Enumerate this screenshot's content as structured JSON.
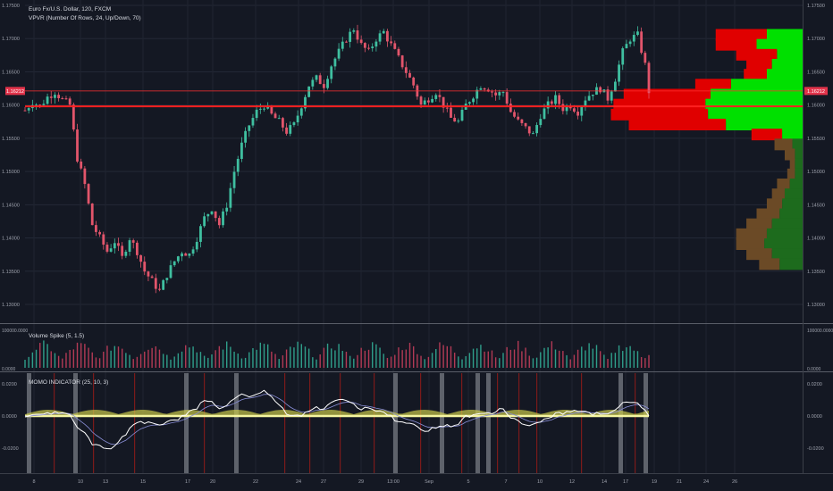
{
  "header": {
    "symbol_title": "Euro Fx/U.S. Dollar, 120, FXCM",
    "vpvr_title": "VPVR (Number Of Rows, 24, Up/Down, 70)"
  },
  "price_axis": {
    "labels": [
      "1.17500",
      "1.17000",
      "1.16500",
      "1.16000",
      "1.15500",
      "1.15000",
      "1.14500",
      "1.14000",
      "1.13500",
      "1.13000"
    ],
    "values": [
      1.175,
      1.17,
      1.165,
      1.16,
      1.155,
      1.15,
      1.145,
      1.14,
      1.135,
      1.13
    ],
    "current_price_label": "1.16212",
    "current_price": 1.16212,
    "poc_price": 1.1598
  },
  "date_axis": {
    "labels": [
      "8",
      "10",
      "13",
      "15",
      "17",
      "20",
      "22",
      "24",
      "27",
      "29",
      "13:00",
      "Sep",
      "5",
      "7",
      "10",
      "12",
      "14",
      "17",
      "19",
      "21",
      "24",
      "26"
    ]
  },
  "volume_pane": {
    "title": "Volume Spike (5, 1.5)",
    "top_label": "100000.0000",
    "bottom_label": "0.0000"
  },
  "momentum_pane": {
    "title": "MOMO INDICATOR (25, 10, 3)",
    "labels": [
      "0.0200",
      "0.0000",
      "-0.0200"
    ],
    "values": [
      0.02,
      0.0,
      -0.02
    ]
  },
  "colors": {
    "background": "#141823",
    "candle_up": "#3fbfa0",
    "candle_down": "#e2556b",
    "vpvr_up_current": "#00e000",
    "vpvr_down_current": "#e00000",
    "vpvr_up_old": "#1d6b1d",
    "vpvr_down_old": "#6b4a26",
    "price_line": "#ff3030",
    "momentum_line": "#ffffff",
    "signal_line": "#8a8fd8",
    "zero_band": "#c8c84a"
  },
  "chart_data": [
    {
      "type": "candlestick",
      "title": "Euro Fx/U.S. Dollar, 120, FXCM",
      "ylim": [
        1.128,
        1.176
      ],
      "price_path": [
        [
          0,
          1.1592
        ],
        [
          2,
          1.1605
        ],
        [
          4,
          1.1598
        ],
        [
          6,
          1.1612
        ],
        [
          8,
          1.162
        ],
        [
          10,
          1.1608
        ],
        [
          12,
          1.16
        ],
        [
          14,
          1.152
        ],
        [
          16,
          1.148
        ],
        [
          18,
          1.142
        ],
        [
          20,
          1.14
        ],
        [
          22,
          1.138
        ],
        [
          24,
          1.1395
        ],
        [
          26,
          1.137
        ],
        [
          28,
          1.14
        ],
        [
          30,
          1.138
        ],
        [
          32,
          1.135
        ],
        [
          34,
          1.1335
        ],
        [
          36,
          1.132
        ],
        [
          38,
          1.1345
        ],
        [
          40,
          1.1365
        ],
        [
          42,
          1.138
        ],
        [
          44,
          1.1375
        ],
        [
          46,
          1.14
        ],
        [
          48,
          1.143
        ],
        [
          50,
          1.1445
        ],
        [
          52,
          1.142
        ],
        [
          54,
          1.145
        ],
        [
          56,
          1.15
        ],
        [
          58,
          1.154
        ],
        [
          60,
          1.157
        ],
        [
          62,
          1.159
        ],
        [
          64,
          1.16
        ],
        [
          66,
          1.1585
        ],
        [
          68,
          1.1575
        ],
        [
          70,
          1.156
        ],
        [
          72,
          1.157
        ],
        [
          74,
          1.16
        ],
        [
          76,
          1.163
        ],
        [
          78,
          1.164
        ],
        [
          80,
          1.163
        ],
        [
          82,
          1.166
        ],
        [
          84,
          1.168
        ],
        [
          86,
          1.17
        ],
        [
          88,
          1.1715
        ],
        [
          90,
          1.169
        ],
        [
          92,
          1.168
        ],
        [
          94,
          1.17
        ],
        [
          96,
          1.171
        ],
        [
          98,
          1.169
        ],
        [
          100,
          1.167
        ],
        [
          102,
          1.165
        ],
        [
          104,
          1.163
        ],
        [
          106,
          1.16
        ],
        [
          108,
          1.161
        ],
        [
          110,
          1.162
        ],
        [
          112,
          1.16
        ],
        [
          114,
          1.158
        ],
        [
          116,
          1.1575
        ],
        [
          118,
          1.16
        ],
        [
          120,
          1.1615
        ],
        [
          122,
          1.163
        ],
        [
          124,
          1.1625
        ],
        [
          126,
          1.1615
        ],
        [
          128,
          1.162
        ],
        [
          130,
          1.159
        ],
        [
          132,
          1.1575
        ],
        [
          134,
          1.1565
        ],
        [
          136,
          1.1555
        ],
        [
          138,
          1.1585
        ],
        [
          140,
          1.16
        ],
        [
          142,
          1.161
        ],
        [
          144,
          1.1595
        ],
        [
          146,
          1.16
        ],
        [
          148,
          1.159
        ],
        [
          150,
          1.161
        ],
        [
          152,
          1.162
        ],
        [
          154,
          1.1625
        ],
        [
          156,
          1.161
        ],
        [
          158,
          1.164
        ],
        [
          160,
          1.168
        ],
        [
          162,
          1.17
        ],
        [
          164,
          1.1705
        ],
        [
          166,
          1.166
        ],
        [
          167,
          1.1621
        ]
      ]
    },
    {
      "type": "bar",
      "title": "VPVR (Number Of Rows, 24, Up/Down, 70)",
      "rows_price": [
        1.1705,
        1.169,
        1.1675,
        1.166,
        1.1645,
        1.163,
        1.1615,
        1.16,
        1.1585,
        1.157,
        1.1555,
        1.154,
        1.1525,
        1.151,
        1.1495,
        1.148,
        1.1465,
        1.145,
        1.1435,
        1.142,
        1.1405,
        1.139,
        1.1375,
        1.136
      ],
      "up_volume": [
        14,
        18,
        10,
        12,
        14,
        28,
        36,
        38,
        37,
        30,
        8,
        4,
        3,
        3,
        3,
        5,
        7,
        8,
        9,
        12,
        14,
        15,
        12,
        9
      ],
      "down_volume": [
        20,
        16,
        16,
        10,
        9,
        14,
        34,
        36,
        38,
        38,
        12,
        7,
        4,
        2,
        3,
        5,
        5,
        6,
        9,
        10,
        12,
        11,
        10,
        8
      ],
      "current_rows": [
        0,
        1,
        2,
        3,
        4,
        5,
        6,
        7,
        8,
        9,
        10
      ]
    },
    {
      "type": "bar",
      "title": "Volume Spike (5, 1.5)",
      "ylim": [
        0,
        100000
      ]
    },
    {
      "type": "line",
      "title": "MOMO INDICATOR (25, 10, 3)",
      "ylim": [
        -0.03,
        0.025
      ]
    }
  ]
}
